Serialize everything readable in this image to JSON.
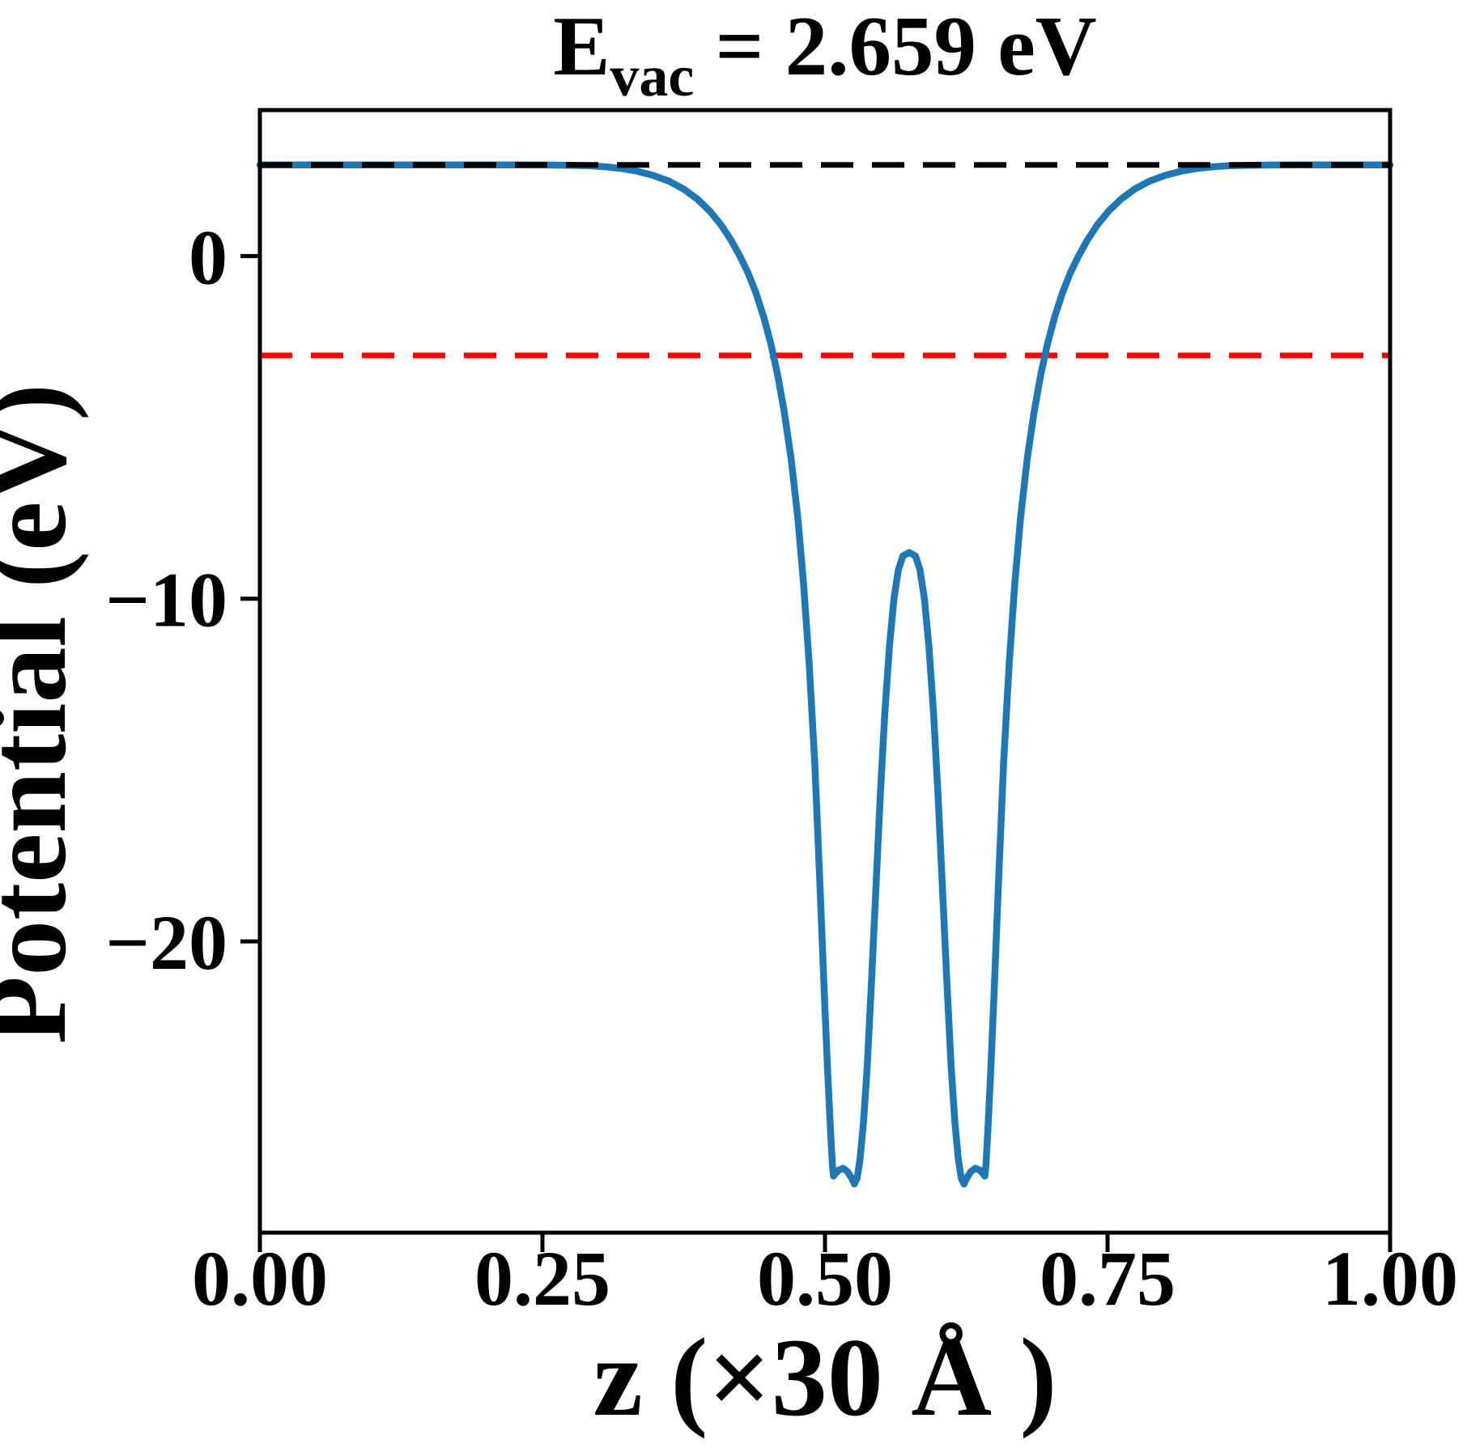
{
  "title": {
    "prefix": "E",
    "subscript": "vac",
    "rest": " = 2.659 eV",
    "full": "E_vac = 2.659 eV"
  },
  "axes": {
    "xlabel": "z (×30 Å )",
    "ylabel": "Potential (eV)",
    "x_ticks": {
      "values": [
        0.0,
        0.25,
        0.5,
        0.75,
        1.0
      ],
      "labels": [
        "0.00",
        "0.25",
        "0.50",
        "0.75",
        "1.00"
      ]
    },
    "y_ticks": {
      "values": [
        0,
        -10,
        -20
      ],
      "labels": [
        "0",
        "−10",
        "−20"
      ]
    }
  },
  "colors": {
    "curve": "#1f77b4",
    "vacuum_line": "#000000",
    "reference_line": "#ff0000",
    "frame": "#000000"
  },
  "chart_data": {
    "type": "line",
    "title": "E_vac = 2.659 eV",
    "xlabel": "z (×30 Å )",
    "ylabel": "Potential (eV)",
    "xlim": [
      0.0,
      1.0
    ],
    "ylim": [
      -28.5,
      4.26
    ],
    "grid": false,
    "legend": "none",
    "annotations": {
      "E_vac_eV": 2.659,
      "reference_level_eV": -2.9
    },
    "series": [
      {
        "name": "planar-averaged-potential",
        "color": "#1f77b4",
        "style": "solid",
        "x": [
          0.0,
          0.04,
          0.08,
          0.12,
          0.16,
          0.2,
          0.23,
          0.255,
          0.275,
          0.292,
          0.306,
          0.32,
          0.334,
          0.348,
          0.362,
          0.375,
          0.387,
          0.398,
          0.408,
          0.417,
          0.425,
          0.432,
          0.439,
          0.446,
          0.452,
          0.458,
          0.464,
          0.47,
          0.476,
          0.481,
          0.486,
          0.491,
          0.4955,
          0.4995,
          0.5025,
          0.505,
          0.5065,
          0.5075,
          0.509,
          0.512,
          0.516,
          0.52,
          0.5235,
          0.526,
          0.5285,
          0.531,
          0.534,
          0.5375,
          0.541,
          0.545,
          0.549,
          0.553,
          0.557,
          0.561,
          0.565,
          0.569,
          0.5745,
          0.58,
          0.584,
          0.588,
          0.592,
          0.596,
          0.6,
          0.604,
          0.608,
          0.6115,
          0.615,
          0.618,
          0.6205,
          0.623,
          0.6255,
          0.629,
          0.633,
          0.637,
          0.64,
          0.6415,
          0.6425,
          0.644,
          0.6465,
          0.6495,
          0.6535,
          0.658,
          0.663,
          0.668,
          0.673,
          0.679,
          0.685,
          0.691,
          0.697,
          0.703,
          0.71,
          0.717,
          0.724,
          0.732,
          0.741,
          0.751,
          0.762,
          0.774,
          0.787,
          0.801,
          0.815,
          0.829,
          0.843,
          0.857,
          0.874,
          0.894,
          0.92,
          0.96,
          1.0
        ],
        "y": [
          2.659,
          2.659,
          2.659,
          2.659,
          2.659,
          2.659,
          2.659,
          2.657,
          2.65,
          2.635,
          2.605,
          2.555,
          2.475,
          2.355,
          2.185,
          1.955,
          1.665,
          1.315,
          0.91,
          0.46,
          -0.02,
          -0.5,
          -1.08,
          -1.8,
          -2.55,
          -3.45,
          -4.55,
          -5.9,
          -7.65,
          -9.55,
          -11.9,
          -14.8,
          -18.3,
          -21.6,
          -23.9,
          -25.6,
          -26.5,
          -26.85,
          -26.78,
          -26.68,
          -26.62,
          -26.72,
          -26.9,
          -27.08,
          -26.9,
          -26.35,
          -25.3,
          -23.6,
          -21.3,
          -18.5,
          -15.7,
          -13.3,
          -11.4,
          -10.0,
          -9.15,
          -8.75,
          -8.65,
          -8.75,
          -9.15,
          -10.0,
          -11.4,
          -13.3,
          -15.7,
          -18.5,
          -21.3,
          -23.6,
          -25.3,
          -26.35,
          -26.9,
          -27.08,
          -26.9,
          -26.72,
          -26.62,
          -26.68,
          -26.78,
          -26.85,
          -26.5,
          -25.6,
          -23.9,
          -21.6,
          -18.3,
          -14.8,
          -11.9,
          -9.55,
          -7.65,
          -5.9,
          -4.55,
          -3.45,
          -2.55,
          -1.8,
          -1.08,
          -0.5,
          -0.02,
          0.46,
          0.91,
          1.315,
          1.665,
          1.955,
          2.185,
          2.355,
          2.475,
          2.555,
          2.605,
          2.635,
          2.65,
          2.657,
          2.659,
          2.659,
          2.659
        ]
      },
      {
        "name": "vacuum-level",
        "color": "#000000",
        "style": "dashed",
        "y_const": 2.659,
        "x_range": [
          0.0,
          1.0
        ]
      },
      {
        "name": "reference-level",
        "color": "#ff0000",
        "style": "dashed",
        "y_const": -2.9,
        "x_range": [
          0.0,
          1.0
        ]
      }
    ]
  }
}
